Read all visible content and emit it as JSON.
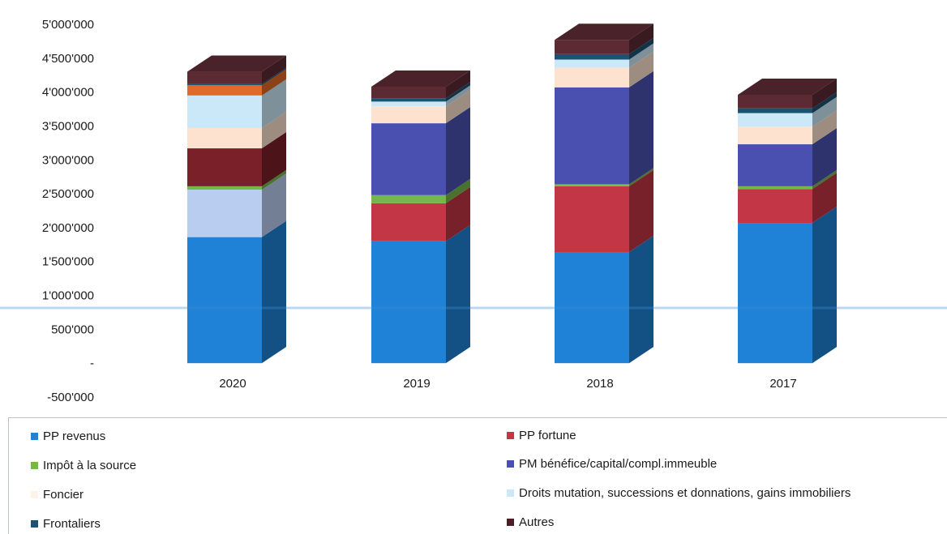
{
  "chart_data": {
    "type": "bar",
    "stacked": true,
    "style": "3d",
    "categories": [
      "2020",
      "2019",
      "2018",
      "2017"
    ],
    "y_ticks": [
      "5'000'000",
      "4'500'000",
      "4'000'000",
      "3'500'000",
      "3'000'000",
      "2'500'000",
      "2'000'000",
      "1'500'000",
      "1'000'000",
      "500'000",
      "-",
      "-500'000"
    ],
    "y_tick_values": [
      5000000,
      4500000,
      4000000,
      3500000,
      3000000,
      2500000,
      2000000,
      1500000,
      1000000,
      500000,
      0,
      -500000
    ],
    "ylim": [
      -500000,
      5000000
    ],
    "grid": false,
    "legend_position": "bottom",
    "series": [
      {
        "name": "PP revenus",
        "color": "#1f82d6",
        "values": [
          1860000,
          1800000,
          1640000,
          2070000
        ]
      },
      {
        "name": "PP fortune",
        "color": "#c23645",
        "values": [
          0,
          560000,
          970000,
          500000
        ]
      },
      {
        "name": "Impôt à la source",
        "color": "#74b84a",
        "values": [
          50000,
          120000,
          30000,
          40000
        ]
      },
      {
        "name": "PM bénéfice/capital/compl.immeuble",
        "color": "#4a50b0",
        "values": [
          0,
          1060000,
          1430000,
          620000
        ]
      },
      {
        "name": "Foncier",
        "color": "#fde3cf",
        "values": [
          300000,
          250000,
          290000,
          260000
        ]
      },
      {
        "name": "Droits mutation, successions et donnations, gains immobiliers",
        "color": "#cbe8f8",
        "values": [
          480000,
          70000,
          120000,
          200000
        ]
      },
      {
        "name": "Frontaliers",
        "color": "#1b5272",
        "values": [
          20000,
          50000,
          80000,
          70000
        ]
      },
      {
        "name": "Autres",
        "color": "#5c2a33",
        "values": [
          180000,
          170000,
          210000,
          200000
        ]
      }
    ],
    "extra_segments_2020": [
      {
        "name": "(unlabeled)",
        "color": "#b8cdf0",
        "after_series": "PP revenus",
        "value": 700000
      },
      {
        "name": "(unlabeled)",
        "color": "#7a2028",
        "after_series": "Impôt à la source",
        "value": 560000
      },
      {
        "name": "(unlabeled)",
        "color": "#e06a26",
        "after_series": "Droits mutation, successions et donnations, gains immobiliers",
        "value": 150000
      }
    ]
  },
  "legend": {
    "items": [
      {
        "label": "PP revenus",
        "color": "#1f82d6"
      },
      {
        "label": "PP fortune",
        "color": "#c23645"
      },
      {
        "label": "Impôt à la source",
        "color": "#74b84a"
      },
      {
        "label": "PM bénéfice/capital/compl.immeuble",
        "color": "#4a50b0"
      },
      {
        "label": "Foncier",
        "color": "#fdf3e6"
      },
      {
        "label": "Droits mutation, successions et donnations, gains immobiliers",
        "color": "#cbe8f8"
      },
      {
        "label": "Frontaliers",
        "color": "#1b5272"
      },
      {
        "label": "Autres",
        "color": "#4a1e26"
      }
    ]
  }
}
